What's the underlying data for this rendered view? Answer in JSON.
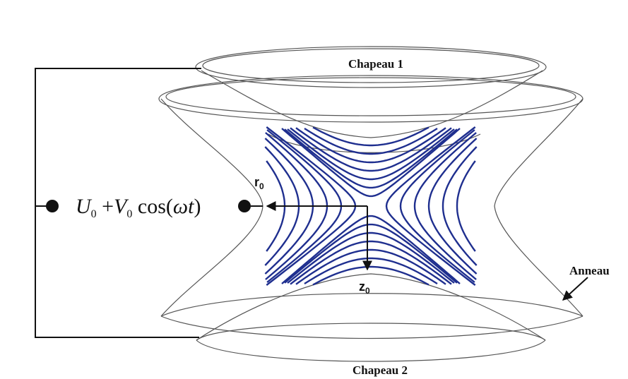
{
  "labels": {
    "cap_top": "Chapeau 1",
    "cap_bottom": "Chapeau 2",
    "ring": "Anneau",
    "radius": "r",
    "radius_sub": "0",
    "axial": "z",
    "axial_sub": "0"
  },
  "formula": {
    "u": "U",
    "u_sub": "0",
    "plus": " +",
    "v": "V",
    "v_sub": "0",
    "tail": " cos(",
    "omega": "ω",
    "t": "t",
    "close": ")"
  },
  "colors": {
    "field_lines": "#1f2f8f",
    "outline": "#555555",
    "wire": "#111111"
  }
}
